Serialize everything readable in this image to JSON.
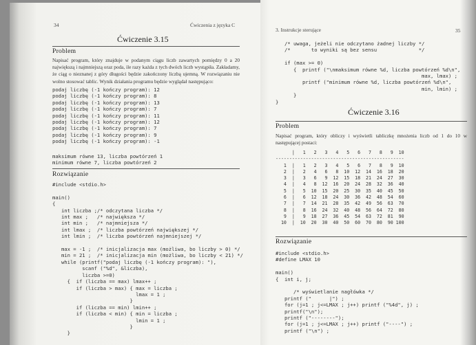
{
  "left_page": {
    "page_number": "34",
    "running_header": "Ćwiczenia z języka C",
    "exercise_title": "Ćwiczenie 3.15",
    "problem_heading": "Problem",
    "problem_text": "Napisać program, który znajduje w podanym ciągu liczb zawartych pomiędzy 0 a 20 największą i najmniejszą oraz poda, ile razy każda z tych dwóch liczb wystąpiła. Zakładamy, że ciąg o nieznanej z góry długości będzie zakończony liczbą ujemną. W rozwiązaniu nie wolno stosować tablic. Wynik działania programu będzie wyglądał następująco:",
    "sample_output": "podaj liczbę (-1 kończy program): 12\npodaj liczbę (-1 kończy program): 8\npodaj liczbę (-1 kończy program): 13\npodaj liczbę (-1 kończy program): 7\npodaj liczbę (-1 kończy program): 11\npodaj liczbę (-1 kończy program): 12\npodaj liczbę (-1 kończy program): 7\npodaj liczbę (-1 kończy program): 9\npodaj liczbę (-1 kończy program): -1",
    "sample_result": "maksimum równe 13, liczba powtórzeń 1\nminimum równe 7, liczba powtórzeń 2",
    "solution_heading": "Rozwiązanie",
    "code": "#include <stdio.h>\n\nmain()\n{\n   int liczba ;/* odczytana liczba */\n   int max ;   /* największa */\n   int min ;   /* najmniejsza */\n   int lmax ;  /* liczba powtórzeń największej */\n   int lmin ;  /* liczba powtórzeń najmniejszej */\n\n   max = -1 ;  /* inicjalizacja max (możliwa, bo liczby > 0) */\n   min = 21 ;  /* inicjalizacja min (możliwa, bo liczby < 21) */\n   while (printf(\"podaj liczbę (-1 kończy program): \"),\n          scanf (\"%d\", &liczba),\n          liczba >=0)\n     {  if (liczba == max) lmax++ ;\n        if (liczba > max) { max = liczba ;\n                            lmax = 1 ;\n                          }\n        if (liczba == min) lmin++ ;\n        if (liczba < min) { min = liczba ;\n                            lmin = 1 ;\n                          }\n     }"
  },
  "right_page": {
    "running_header": "3. Instrukcje sterujące",
    "page_number": "35",
    "code_continued": "   /* uwaga, jeżeli nie odczytano żadnej liczby */\n   /*       to wyniki są bez sensu              */\n\n   if (max >= 0)\n      {  printf (\"\\nmaksimum równe %d, liczba powtórzeń %d\\n\",\n                                                 max, lmax) ;\n         printf (\"minimum równe %d, liczba powtórzeń %d\\n\",\n                                                 min, lmin) ;\n      }\n}",
    "exercise_title": "Ćwiczenie 3.16",
    "problem_heading": "Problem",
    "problem_text": "Napisać program, który obliczy i wyświetli tabliczkę mnożenia liczb od 1 do 10 w następującej postaci:",
    "table": "      |   1   2   3   4   5   6   7   8   9  10\n-----------------------------------------------\n   1  |   1   2   3   4   5   6   7   8   9  10\n   2  |   2   4   6   8  10  12  14  16  18  20\n   3  |   3   6   9  12  15  18  21  24  27  30\n   4  |   4   8  12  16  20  24  28  32  36  40\n   5  |   5  10  15  20  25  30  35  40  45  50\n   6  |   6  12  18  24  30  36  42  48  54  60\n   7  |   7  14  21  28  35  42  49  56  63  70\n   8  |   8  16  24  32  40  48  56  64  72  80\n   9  |   9  18  27  36  45  54  63  72  81  90\n  10  |  10  20  30  40  50  60  70  80  90 100",
    "solution_heading": "Rozwiązanie",
    "code": "#include <stdio.h>\n#define LMAX 10\n\nmain()\n{  int i, j;\n\n      /* wyświetlanie nagłówka */\n   printf (\"      |\") ;\n   for (j=1 ; j<=LMAX ; j++) printf (\"%4d\", j) ;\n   printf(\"\\n\");\n   printf (\"--------\");\n   for (j=1 ; j<=LMAX ; j++) printf (\"----\") ;\n   printf (\"\\n\") ;"
  }
}
